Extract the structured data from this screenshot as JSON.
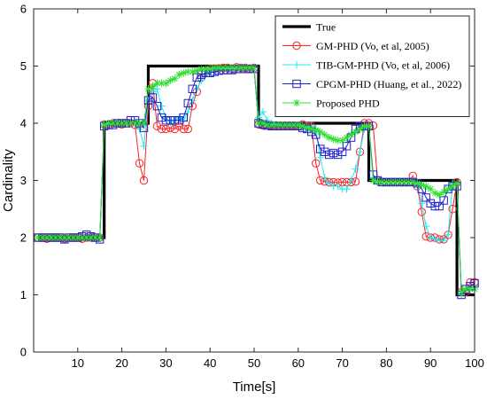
{
  "chart_data": {
    "type": "line",
    "xlabel": "Time[s]",
    "ylabel": "Cardinality",
    "xlim": [
      0,
      100
    ],
    "ylim": [
      0,
      6
    ],
    "xticks": [
      10,
      20,
      30,
      40,
      50,
      60,
      70,
      80,
      90,
      100
    ],
    "yticks": [
      0,
      1,
      2,
      3,
      4,
      5,
      6
    ],
    "grid": false,
    "legend_position": "top-right",
    "x": [
      1,
      2,
      3,
      4,
      5,
      6,
      7,
      8,
      9,
      10,
      11,
      12,
      13,
      14,
      15,
      16,
      17,
      18,
      19,
      20,
      21,
      22,
      23,
      24,
      25,
      26,
      27,
      28,
      29,
      30,
      31,
      32,
      33,
      34,
      35,
      36,
      37,
      38,
      39,
      40,
      41,
      42,
      43,
      44,
      45,
      46,
      47,
      48,
      49,
      50,
      51,
      52,
      53,
      54,
      55,
      56,
      57,
      58,
      59,
      60,
      61,
      62,
      63,
      64,
      65,
      66,
      67,
      68,
      69,
      70,
      71,
      72,
      73,
      74,
      75,
      76,
      77,
      78,
      79,
      80,
      81,
      82,
      83,
      84,
      85,
      86,
      87,
      88,
      89,
      90,
      91,
      92,
      93,
      94,
      95,
      96,
      97,
      98,
      99,
      100
    ],
    "series": [
      {
        "name": "True",
        "color": "#000000",
        "marker": "none",
        "values": [
          2,
          2,
          2,
          2,
          2,
          2,
          2,
          2,
          2,
          2,
          2,
          2,
          2,
          2,
          2,
          4,
          4,
          4,
          4,
          4,
          4,
          4,
          4,
          4,
          4,
          5,
          5,
          5,
          5,
          5,
          5,
          5,
          5,
          5,
          5,
          5,
          5,
          5,
          5,
          5,
          5,
          5,
          5,
          5,
          5,
          5,
          5,
          5,
          5,
          5,
          4,
          4,
          4,
          4,
          4,
          4,
          4,
          4,
          4,
          4,
          4,
          4,
          4,
          4,
          4,
          4,
          4,
          4,
          4,
          4,
          4,
          4,
          4,
          4,
          4,
          3,
          3,
          3,
          3,
          3,
          3,
          3,
          3,
          3,
          3,
          3,
          3,
          3,
          3,
          3,
          3,
          3,
          3,
          3,
          3,
          1,
          1,
          1,
          1,
          1
        ]
      },
      {
        "name": "GM-PHD (Vo, et al, 2005)",
        "color": "#ff2020",
        "marker": "circle",
        "values": [
          2,
          2,
          1.98,
          2,
          2,
          2,
          1.98,
          2,
          2,
          2,
          1.98,
          2,
          2,
          2,
          2,
          3.98,
          3.98,
          4,
          4,
          3.98,
          4,
          4,
          3.97,
          3.3,
          3,
          4.3,
          4.7,
          3.95,
          3.9,
          3.9,
          3.92,
          3.9,
          3.95,
          3.9,
          3.9,
          4.3,
          4.55,
          4.8,
          4.9,
          4.95,
          4.95,
          4.96,
          4.97,
          4.97,
          4.95,
          4.98,
          4.97,
          4.97,
          4.95,
          4.97,
          3.98,
          3.96,
          3.96,
          3.96,
          3.96,
          3.96,
          3.96,
          3.96,
          3.96,
          3.95,
          3.98,
          3.95,
          3.95,
          3.3,
          3,
          2.98,
          2.97,
          2.97,
          2.96,
          2.97,
          2.97,
          2.97,
          2.98,
          3.5,
          4,
          4,
          3.96,
          3,
          2.97,
          2.97,
          2.97,
          2.97,
          2.97,
          2.97,
          2.97,
          3.08,
          2.9,
          2.45,
          2.02,
          2,
          2,
          1.97,
          1.97,
          2.05,
          2.5,
          2.97,
          1.05,
          1.05,
          1.22,
          1.22
        ]
      },
      {
        "name": "TIB-GM-PHD (Vo, et al, 2006)",
        "color": "#20e8f0",
        "marker": "plus",
        "values": [
          2,
          2,
          2,
          2,
          2,
          2,
          2,
          2,
          2,
          2,
          2,
          2,
          2,
          2,
          2,
          3.98,
          3.98,
          4,
          4,
          4,
          4,
          4,
          4,
          3.9,
          3.6,
          4.4,
          4.55,
          4.6,
          4.3,
          4.1,
          4,
          4.05,
          4.1,
          4.05,
          4.2,
          4.4,
          4.6,
          4.75,
          4.85,
          4.9,
          4.92,
          4.95,
          4.95,
          4.95,
          4.96,
          4.97,
          4.97,
          4.97,
          4.97,
          4.97,
          4.1,
          4.2,
          4.05,
          4,
          3.98,
          3.96,
          3.95,
          3.95,
          3.95,
          3.95,
          3.95,
          3.95,
          3.95,
          3.9,
          3.4,
          3.05,
          2.95,
          2.9,
          2.9,
          2.85,
          2.85,
          3,
          3.2,
          3.5,
          3.9,
          3.95,
          3.05,
          2.97,
          2.97,
          2.97,
          2.97,
          2.97,
          2.97,
          2.97,
          2.97,
          2.97,
          2.95,
          2.6,
          2.2,
          2,
          1.98,
          1.95,
          1.95,
          2.05,
          2.95,
          2.95,
          1,
          1.1,
          1.1,
          1.15
        ]
      },
      {
        "name": "CPGM-PHD (Huang, et al., 2022)",
        "color": "#1f1fcc",
        "marker": "square",
        "values": [
          2,
          2,
          2,
          2,
          2,
          2,
          1.97,
          2,
          2,
          2,
          2.02,
          2.05,
          2.02,
          2,
          1.97,
          3.95,
          3.97,
          3.97,
          4,
          4,
          4,
          4.05,
          4.05,
          4,
          3.92,
          4.4,
          4.45,
          4.3,
          4.1,
          4.05,
          4.05,
          4.05,
          4.05,
          4.1,
          4.35,
          4.6,
          4.8,
          4.85,
          4.88,
          4.88,
          4.9,
          4.92,
          4.93,
          4.93,
          4.93,
          4.95,
          4.95,
          4.95,
          4.95,
          4.95,
          4,
          3.98,
          3.96,
          3.95,
          3.95,
          3.95,
          3.95,
          3.95,
          3.95,
          3.95,
          3.92,
          3.9,
          3.85,
          3.8,
          3.55,
          3.5,
          3.45,
          3.48,
          3.45,
          3.5,
          3.6,
          3.75,
          3.9,
          3.95,
          3.95,
          3.95,
          3.1,
          3,
          2.97,
          2.97,
          2.97,
          2.97,
          2.97,
          2.97,
          2.97,
          2.97,
          2.95,
          2.85,
          2.7,
          2.6,
          2.55,
          2.55,
          2.65,
          2.85,
          2.9,
          2.9,
          1,
          1.1,
          1.15,
          1.2
        ]
      },
      {
        "name": "Proposed PHD",
        "color": "#30e030",
        "marker": "asterisk",
        "values": [
          2,
          2,
          2,
          2,
          2,
          2,
          2,
          2,
          2,
          2,
          2,
          2,
          2,
          2,
          2,
          3.97,
          4,
          4,
          4,
          4,
          4,
          4,
          4,
          4,
          4,
          4.6,
          4.65,
          4.7,
          4.7,
          4.7,
          4.75,
          4.78,
          4.85,
          4.88,
          4.9,
          4.9,
          4.92,
          4.95,
          4.95,
          4.95,
          4.97,
          4.97,
          4.97,
          4.97,
          4.97,
          4.97,
          4.97,
          4.97,
          4.97,
          4.97,
          4,
          4,
          3.97,
          3.97,
          3.97,
          3.97,
          3.97,
          3.97,
          3.97,
          3.97,
          3.95,
          3.92,
          3.9,
          3.88,
          3.85,
          3.8,
          3.75,
          3.72,
          3.7,
          3.7,
          3.75,
          3.8,
          3.85,
          3.9,
          3.95,
          3.95,
          3,
          2.98,
          2.97,
          2.97,
          2.97,
          2.97,
          2.97,
          2.97,
          2.97,
          2.97,
          2.95,
          2.92,
          2.9,
          2.85,
          2.78,
          2.75,
          2.8,
          2.85,
          2.9,
          2.95,
          1.05,
          1.1,
          1.1,
          1.1
        ]
      }
    ]
  }
}
